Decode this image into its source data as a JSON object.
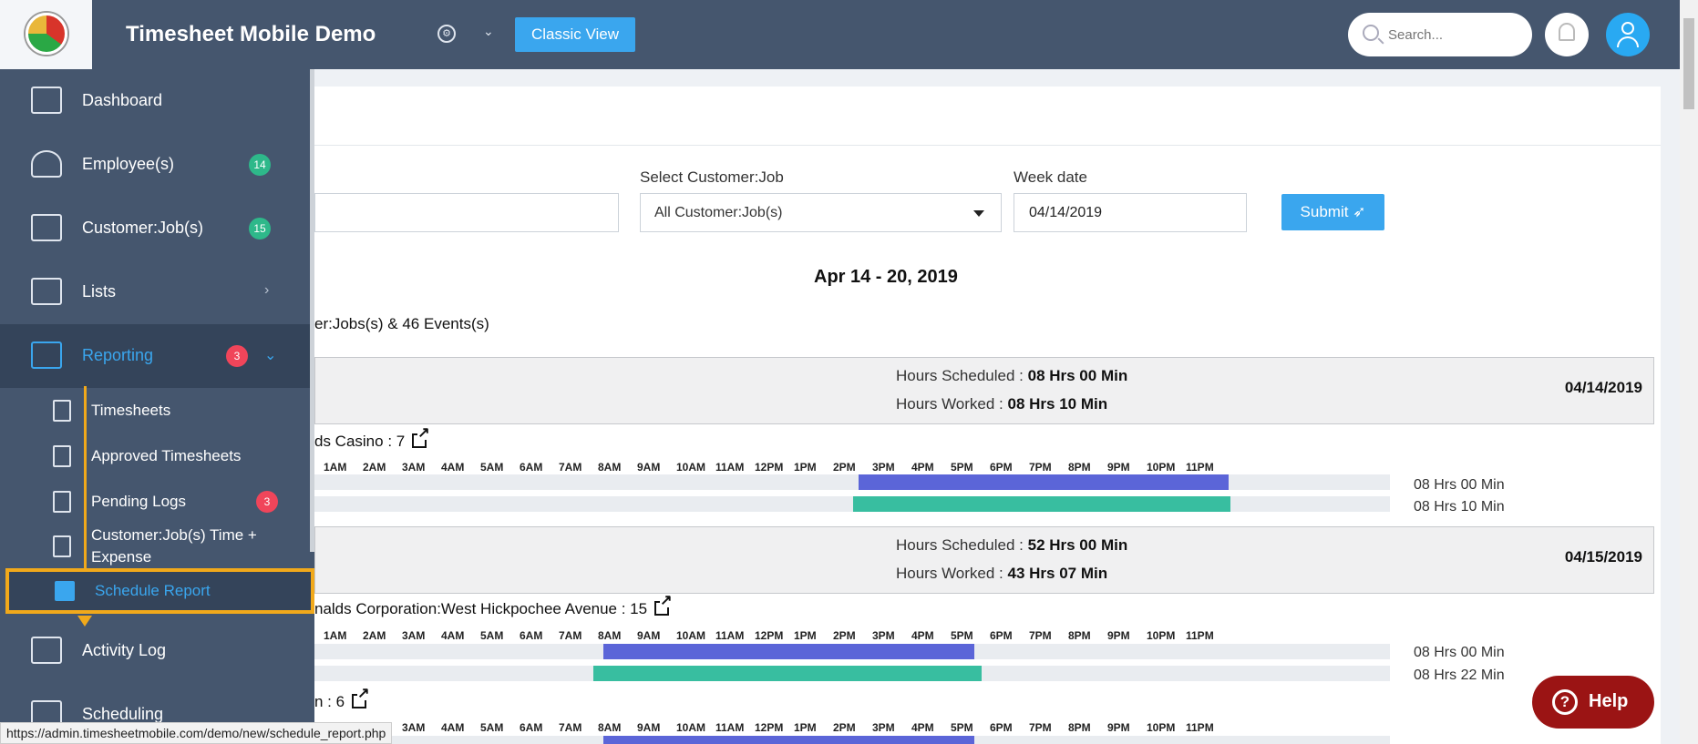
{
  "header": {
    "app_title": "Timesheet Mobile Demo",
    "classic_view_label": "Classic View",
    "search_placeholder": "Search..."
  },
  "sidebar": {
    "items": [
      {
        "label": "Dashboard"
      },
      {
        "label": "Employee(s)",
        "badge": "14"
      },
      {
        "label": "Customer:Job(s)",
        "badge": "15"
      },
      {
        "label": "Lists"
      },
      {
        "label": "Reporting",
        "badge": "3"
      },
      {
        "label": "Activity Log"
      },
      {
        "label": "Scheduling"
      }
    ],
    "reporting_sub": [
      {
        "label": "Timesheets"
      },
      {
        "label": "Approved Timesheets"
      },
      {
        "label": "Pending Logs",
        "badge": "3"
      },
      {
        "label": "Customer:Job(s) Time + Expense"
      },
      {
        "label": "Schedule Report"
      }
    ]
  },
  "filters": {
    "customer_job_label": "Select Customer:Job",
    "customer_job_value": "All Customer:Job(s)",
    "week_date_label": "Week date",
    "week_date_value": "04/14/2019",
    "submit_label": "Submit"
  },
  "report": {
    "range_title": "Apr 14 - 20, 2019",
    "summary": "er:Jobs(s) & 46 Events(s)",
    "hours_scheduled_label": "Hours Scheduled :",
    "hours_worked_label": "Hours Worked     :",
    "hour_ticks": [
      "1AM",
      "2AM",
      "3AM",
      "4AM",
      "5AM",
      "6AM",
      "7AM",
      "8AM",
      "9AM",
      "10AM",
      "11AM",
      "12PM",
      "1PM",
      "2PM",
      "3PM",
      "4PM",
      "5PM",
      "6PM",
      "7PM",
      "8PM",
      "9PM",
      "10PM",
      "11PM"
    ],
    "days": [
      {
        "date": "04/14/2019",
        "scheduled": "08 Hrs 00 Min",
        "worked": "08 Hrs 10 Min"
      },
      {
        "date": "04/15/2019",
        "scheduled": "52 Hrs 00 Min",
        "worked": "43 Hrs 07 Min"
      }
    ],
    "jobs": [
      {
        "title": "ds Casino : 7",
        "scheduled": "08 Hrs 00 Min",
        "worked": "08 Hrs 10 Min"
      },
      {
        "title": "nalds Corporation:West Hickpochee Avenue : 15",
        "scheduled": "08 Hrs 00 Min",
        "worked": "08 Hrs 22 Min"
      },
      {
        "title": "n : 6"
      }
    ]
  },
  "status_url": "https://admin.timesheetmobile.com/demo/new/schedule_report.php",
  "help_label": "Help"
}
